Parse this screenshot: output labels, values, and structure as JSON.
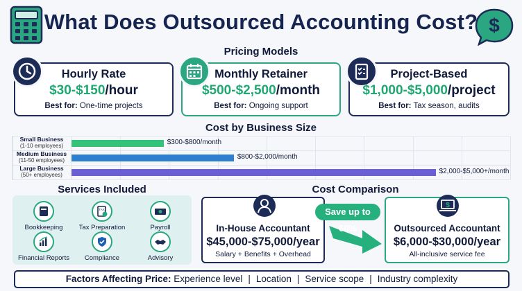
{
  "title": "What Does Outsourced Accounting Cost?",
  "pricing": {
    "heading": "Pricing Models",
    "cards": [
      {
        "title": "Hourly Rate",
        "price_range": "$30-$150",
        "unit": "/hour",
        "best_label": "Best for:",
        "best_value": "One-time projects",
        "icon": "clock-icon"
      },
      {
        "title": "Monthly Retainer",
        "price_range": "$500-$2,500",
        "unit": "/month",
        "best_label": "Best for:",
        "best_value": "Ongoing support",
        "icon": "calendar-icon"
      },
      {
        "title": "Project-Based",
        "price_range": "$1,000-$5,000",
        "unit": "/project",
        "best_label": "Best for:",
        "best_value": "Tax season, audits",
        "icon": "checklist-icon"
      }
    ]
  },
  "cost_by_size": {
    "heading": "Cost by Business Size",
    "rows": [
      {
        "name": "Small Business",
        "sub": "(1-10 employees)",
        "label": "$300-$800/month",
        "color": "#34c27a",
        "fill": 0.21
      },
      {
        "name": "Medium Business",
        "sub": "(11-50 employees)",
        "label": "$800-$2,000/month",
        "color": "#2f7fd1",
        "fill": 0.37
      },
      {
        "name": "Large Business",
        "sub": "(50+ employees)",
        "label": "$2,000-$5,000+/month",
        "color": "#6a5fd3",
        "fill": 0.83
      }
    ]
  },
  "services": {
    "heading": "Services Included",
    "items": [
      {
        "label": "Bookkeeping",
        "icon": "book-icon"
      },
      {
        "label": "Tax Preparation",
        "icon": "tax-document-icon"
      },
      {
        "label": "Payroll",
        "icon": "money-icon"
      },
      {
        "label": "Financial Reports",
        "icon": "chart-icon"
      },
      {
        "label": "Compliance",
        "icon": "shield-check-icon"
      },
      {
        "label": "Advisory",
        "icon": "handshake-icon"
      }
    ]
  },
  "comparison": {
    "heading": "Cost Comparison",
    "inhouse": {
      "title": "In-House Accountant",
      "amount": "$45,000-$75,000/year",
      "note": "Salary + Benefits + Overhead",
      "icon": "person-icon"
    },
    "outsourced": {
      "title": "Outsourced Accountant",
      "amount": "$6,000-$30,000/year",
      "note": "All-inclusive service fee",
      "icon": "laptop-dollar-icon"
    },
    "savings": "Save up to 60%"
  },
  "factors": {
    "label": "Factors Affecting Price:",
    "items": [
      "Experience level",
      "Location",
      "Service scope",
      "Industry complexity"
    ]
  },
  "colors": {
    "navy": "#1d2b57",
    "green": "#2aa680",
    "price_green": "#1fa874"
  }
}
